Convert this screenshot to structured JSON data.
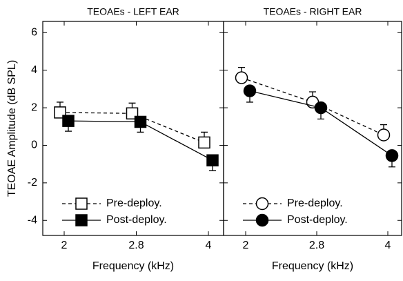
{
  "chart_data": [
    {
      "type": "line",
      "title": "TEOAEs - LEFT EAR",
      "xlabel": "Frequency (kHz)",
      "ylabel": "TEOAE Amplitude (dB SPL)",
      "categories": [
        "2",
        "2.8",
        "4"
      ],
      "ylim": [
        -4.8,
        6.6
      ],
      "yticks": [
        -4,
        -2,
        0,
        2,
        4,
        6
      ],
      "legend": "lower left",
      "series": [
        {
          "name": "Pre-deploy.",
          "color": "#000000",
          "fill": "#ffffff",
          "marker": "square",
          "dash": true,
          "error_direction": "up",
          "values": [
            1.75,
            1.7,
            0.15
          ],
          "errors": [
            0.55,
            0.55,
            0.55
          ]
        },
        {
          "name": "Post-deploy.",
          "color": "#000000",
          "fill": "#000000",
          "marker": "square",
          "dash": false,
          "error_direction": "down",
          "values": [
            1.3,
            1.25,
            -0.8
          ],
          "errors": [
            0.55,
            0.55,
            0.55
          ]
        }
      ]
    },
    {
      "type": "line",
      "title": "TEOAEs - RIGHT EAR",
      "xlabel": "Frequency (kHz)",
      "categories": [
        "2",
        "2.8",
        "4"
      ],
      "ylim": [
        -4.8,
        6.6
      ],
      "yticks": [
        -4,
        -2,
        0,
        2,
        4,
        6
      ],
      "legend": "lower left",
      "series": [
        {
          "name": "Pre-deploy.",
          "color": "#000000",
          "fill": "#ffffff",
          "marker": "circle",
          "dash": true,
          "error_direction": "up",
          "values": [
            3.6,
            2.3,
            0.55
          ],
          "errors": [
            0.55,
            0.55,
            0.55
          ]
        },
        {
          "name": "Post-deploy.",
          "color": "#000000",
          "fill": "#000000",
          "marker": "circle",
          "dash": false,
          "error_direction": "down",
          "values": [
            2.9,
            2.0,
            -0.55
          ],
          "errors": [
            0.6,
            0.6,
            0.6
          ]
        }
      ]
    }
  ]
}
